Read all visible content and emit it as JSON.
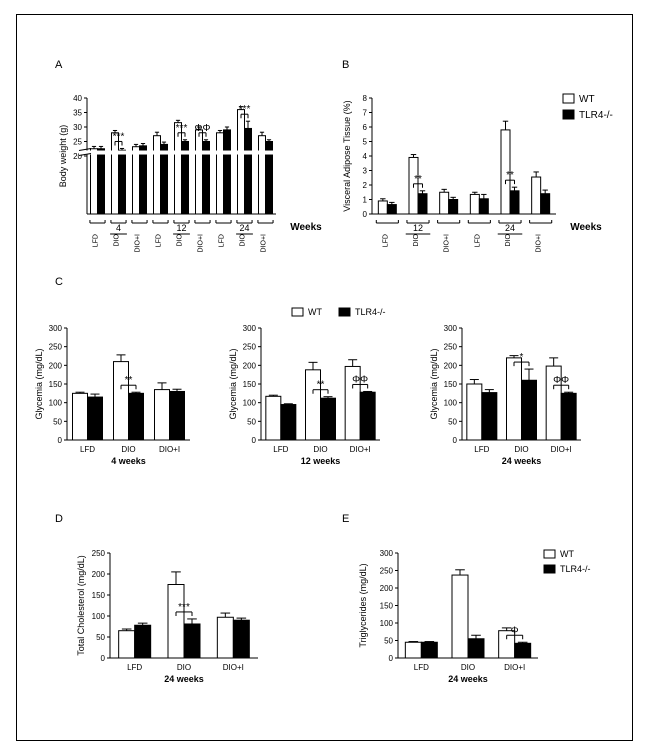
{
  "figure": {
    "legend": {
      "wt": "WT",
      "ko": "TLR4-/-"
    },
    "colors": {
      "wt": "#ffffff",
      "ko": "#000000",
      "line": "#000000"
    }
  },
  "chart_data": [
    {
      "id": "A",
      "panel_label": "A",
      "type": "bar",
      "ylabel": "Body weight (g)",
      "ylim": [
        0,
        40
      ],
      "yticks": [
        20,
        25,
        30,
        35,
        40
      ],
      "axis_break": true,
      "weeks_label": "Weeks",
      "categories": [
        "LFD",
        "DIO",
        "DIO+I",
        "LFD",
        "DIO",
        "DIO+I",
        "LFD",
        "DIO",
        "DIO+I"
      ],
      "week_groups": [
        {
          "label": "4",
          "from": 0,
          "to": 2
        },
        {
          "label": "12",
          "from": 3,
          "to": 5
        },
        {
          "label": "24",
          "from": 6,
          "to": 8
        }
      ],
      "series": [
        {
          "name": "WT",
          "values": [
            22.5,
            28,
            23.2,
            27,
            31.5,
            29,
            28,
            36,
            27
          ],
          "errors": [
            0.8,
            0.8,
            0.8,
            1.2,
            0.8,
            1,
            0.8,
            1,
            1.2
          ]
        },
        {
          "name": "TLR4-/-",
          "values": [
            22.5,
            22,
            23.5,
            24,
            25,
            25,
            29,
            29.5,
            25
          ],
          "errors": [
            0.8,
            0.6,
            0.8,
            0.8,
            0.6,
            0.6,
            1,
            2.5,
            0.6
          ]
        }
      ],
      "annotations": [
        {
          "group": 1,
          "text": "***"
        },
        {
          "group": 4,
          "text": "***"
        },
        {
          "group": 5,
          "text": "ΦΦ"
        },
        {
          "group": 7,
          "text": "***"
        }
      ]
    },
    {
      "id": "B",
      "panel_label": "B",
      "type": "bar",
      "ylabel": "Visceral Adipose Tissue (%)",
      "ylim": [
        0,
        8
      ],
      "yticks": [
        0,
        1,
        2,
        3,
        4,
        5,
        6,
        7,
        8
      ],
      "weeks_label": "Weeks",
      "categories": [
        "LFD",
        "DIO",
        "DIO+I",
        "LFD",
        "DIO",
        "DIO+I"
      ],
      "week_groups": [
        {
          "label": "12",
          "from": 0,
          "to": 2
        },
        {
          "label": "24",
          "from": 3,
          "to": 5
        }
      ],
      "series": [
        {
          "name": "WT",
          "values": [
            0.9,
            3.9,
            1.5,
            1.35,
            5.8,
            2.55
          ],
          "errors": [
            0.15,
            0.2,
            0.2,
            0.15,
            0.6,
            0.35
          ]
        },
        {
          "name": "TLR4-/-",
          "values": [
            0.65,
            1.4,
            1.0,
            1.05,
            1.6,
            1.4
          ],
          "errors": [
            0.15,
            0.2,
            0.15,
            0.3,
            0.25,
            0.25
          ]
        }
      ],
      "annotations": [
        {
          "group": 1,
          "text": "**"
        },
        {
          "group": 4,
          "text": "**"
        }
      ],
      "show_legend": true
    },
    {
      "id": "C1",
      "panel_label": "C",
      "type": "bar",
      "ylabel": "Glycemia (mg/dL)",
      "ylim": [
        0,
        300
      ],
      "yticks": [
        0,
        50,
        100,
        150,
        200,
        250,
        300
      ],
      "categories": [
        "LFD",
        "DIO",
        "DIO+I"
      ],
      "xtitle": "4 weeks",
      "series": [
        {
          "name": "WT",
          "values": [
            125,
            210,
            135
          ],
          "errors": [
            3,
            18,
            18
          ]
        },
        {
          "name": "TLR4-/-",
          "values": [
            115,
            125,
            130
          ],
          "errors": [
            8,
            3,
            6
          ]
        }
      ],
      "annotations": [
        {
          "group": 1,
          "text": "**"
        }
      ]
    },
    {
      "id": "C2",
      "panel_label": "",
      "type": "bar",
      "ylabel": "Glycemia (mg/dL)",
      "ylim": [
        0,
        300
      ],
      "yticks": [
        0,
        50,
        100,
        150,
        200,
        250,
        300
      ],
      "categories": [
        "LFD",
        "DIO",
        "DIO+I"
      ],
      "xtitle": "12 weeks",
      "series": [
        {
          "name": "WT",
          "values": [
            117,
            188,
            197
          ],
          "errors": [
            3,
            20,
            18
          ]
        },
        {
          "name": "TLR4-/-",
          "values": [
            95,
            112,
            128
          ],
          "errors": [
            2,
            4,
            2
          ]
        }
      ],
      "annotations": [
        {
          "group": 1,
          "text": "**"
        },
        {
          "group": 2,
          "text": "ΦΦ"
        }
      ],
      "show_legend": true
    },
    {
      "id": "C3",
      "panel_label": "",
      "type": "bar",
      "ylabel": "Glycemia (mg/dL)",
      "ylim": [
        0,
        300
      ],
      "yticks": [
        0,
        50,
        100,
        150,
        200,
        250,
        300
      ],
      "categories": [
        "LFD",
        "DIO",
        "DIO+I"
      ],
      "xtitle": "24 weeks",
      "series": [
        {
          "name": "WT",
          "values": [
            150,
            220,
            198
          ],
          "errors": [
            12,
            6,
            22
          ]
        },
        {
          "name": "TLR4-/-",
          "values": [
            127,
            160,
            125
          ],
          "errors": [
            8,
            30,
            3
          ]
        }
      ],
      "annotations": [
        {
          "group": 1,
          "text": "*"
        },
        {
          "group": 2,
          "text": "ΦΦ"
        }
      ]
    },
    {
      "id": "D",
      "panel_label": "D",
      "type": "bar",
      "ylabel": "Total Cholesterol (mg/dL)",
      "ylim": [
        0,
        250
      ],
      "yticks": [
        0,
        50,
        100,
        150,
        200,
        250
      ],
      "categories": [
        "LFD",
        "DIO",
        "DIO+I"
      ],
      "xtitle": "24 weeks",
      "series": [
        {
          "name": "WT",
          "values": [
            65,
            175,
            97
          ],
          "errors": [
            4,
            30,
            10
          ]
        },
        {
          "name": "TLR4-/-",
          "values": [
            78,
            81,
            90
          ],
          "errors": [
            5,
            12,
            5
          ]
        }
      ],
      "annotations": [
        {
          "group": 1,
          "text": "***"
        }
      ]
    },
    {
      "id": "E",
      "panel_label": "E",
      "type": "bar",
      "ylabel": "Triglycerides (mg/dL)",
      "ylim": [
        0,
        300
      ],
      "yticks": [
        0,
        50,
        100,
        150,
        200,
        250,
        300
      ],
      "categories": [
        "LFD",
        "DIO",
        "DIO+I"
      ],
      "xtitle": "24 weeks",
      "series": [
        {
          "name": "WT",
          "values": [
            45,
            237,
            78
          ],
          "errors": [
            2,
            15,
            8
          ]
        },
        {
          "name": "TLR4-/-",
          "values": [
            45,
            55,
            42
          ],
          "errors": [
            2,
            10,
            3
          ]
        }
      ],
      "annotations": [
        {
          "group": 2,
          "text": "Φ"
        }
      ],
      "show_legend": true
    }
  ]
}
